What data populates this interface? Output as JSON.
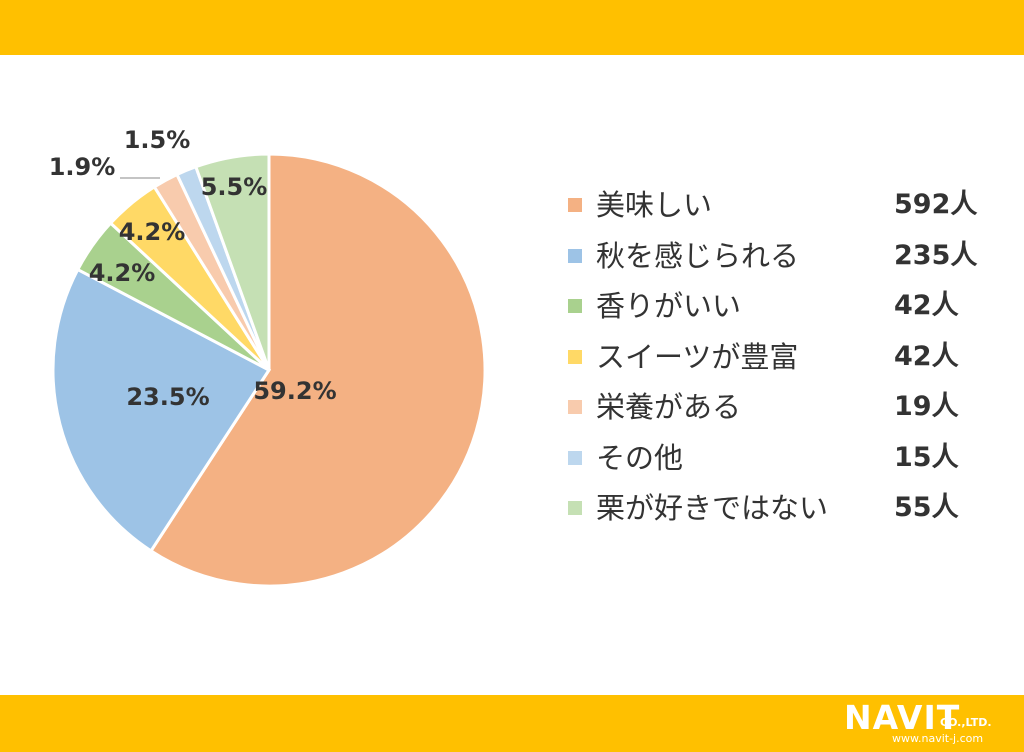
{
  "theme": {
    "band_color": "#FFC000"
  },
  "chart_data": {
    "type": "pie",
    "start_angle_deg": 0,
    "direction": "clockwise",
    "slices": [
      {
        "label": "美味しい",
        "percent": 59.2,
        "percent_label": "59.2%",
        "count_label": "592人",
        "color": "#F4B183"
      },
      {
        "label": "秋を感じられる",
        "percent": 23.5,
        "percent_label": "23.5%",
        "count_label": "235人",
        "color": "#9DC3E6"
      },
      {
        "label": "香りがいい",
        "percent": 4.2,
        "percent_label": "4.2%",
        "count_label": "42人",
        "color": "#A9D18E"
      },
      {
        "label": "スイーツが豊富",
        "percent": 4.2,
        "percent_label": "4.2%",
        "count_label": "42人",
        "color": "#FFD966"
      },
      {
        "label": "栄養がある",
        "percent": 1.9,
        "percent_label": "1.9%",
        "count_label": "19人",
        "color": "#F8CBAD"
      },
      {
        "label": "その他",
        "percent": 1.5,
        "percent_label": "1.5%",
        "count_label": "15人",
        "color": "#BDD7EE"
      },
      {
        "label": "栗が好きではない",
        "percent": 5.5,
        "percent_label": "5.5%",
        "count_label": "55人",
        "color": "#C5E0B4"
      }
    ],
    "legend_position": "right"
  },
  "logo": {
    "main": "NAVIT",
    "suffix": "CO.,LTD.",
    "url": "www.navit-j.com"
  }
}
